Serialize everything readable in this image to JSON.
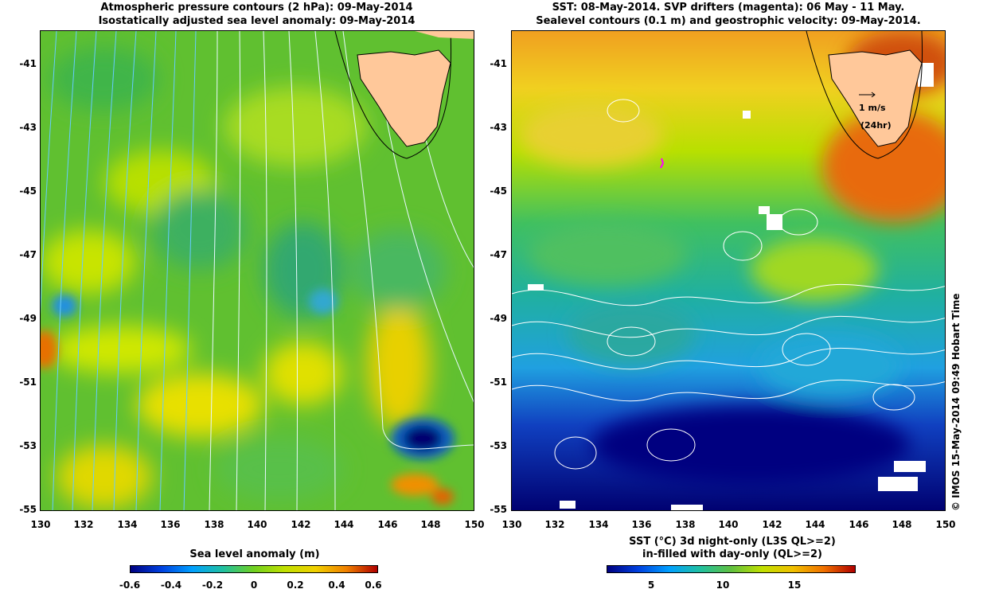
{
  "left_panel": {
    "title_line1": "Atmospheric pressure contours (2 hPa): 09-May-2014",
    "title_line2": "Isostatically adjusted sea level anomaly: 09-May-2014",
    "colorbar_title": "Sea level anomaly (m)",
    "colorbar_ticks": [
      "-0.6",
      "-0.4",
      "-0.2",
      "0",
      "0.2",
      "0.4",
      "0.6"
    ],
    "colors": {
      "low": "#000080",
      "mid": "#7fd000",
      "high": "#b00000",
      "contour": "#66ccff"
    }
  },
  "right_panel": {
    "title_line1": "SST: 08-May-2014. SVP drifters (magenta): 06 May - 11 May.",
    "title_line2": "Sealevel contours (0.1 m) and geostrophic velocity: 09-May-2014.",
    "colorbar_title_line1": "SST (°C)  3d night-only (L3S QL>=2)",
    "colorbar_title_line2": "in-filled with day-only (QL>=2)",
    "colorbar_ticks": [
      "5",
      "10",
      "15"
    ],
    "velocity_scale_label": "1 m/s",
    "velocity_scale_sub": "(24hr)",
    "colors": {
      "cold": "#000090",
      "mid": "#40c060",
      "warm": "#e86a10",
      "land": "#ffc89a"
    }
  },
  "axes": {
    "y_ticks": [
      "-41",
      "-43",
      "-45",
      "-47",
      "-49",
      "-51",
      "-53",
      "-55"
    ],
    "x_ticks": [
      "130",
      "132",
      "134",
      "136",
      "138",
      "140",
      "142",
      "144",
      "146",
      "148",
      "150"
    ],
    "lat_range": [
      -55,
      -40
    ],
    "lon_range": [
      130,
      150
    ]
  },
  "copyright": "© IMOS 15-May-2014 09:49 Hobart Time"
}
